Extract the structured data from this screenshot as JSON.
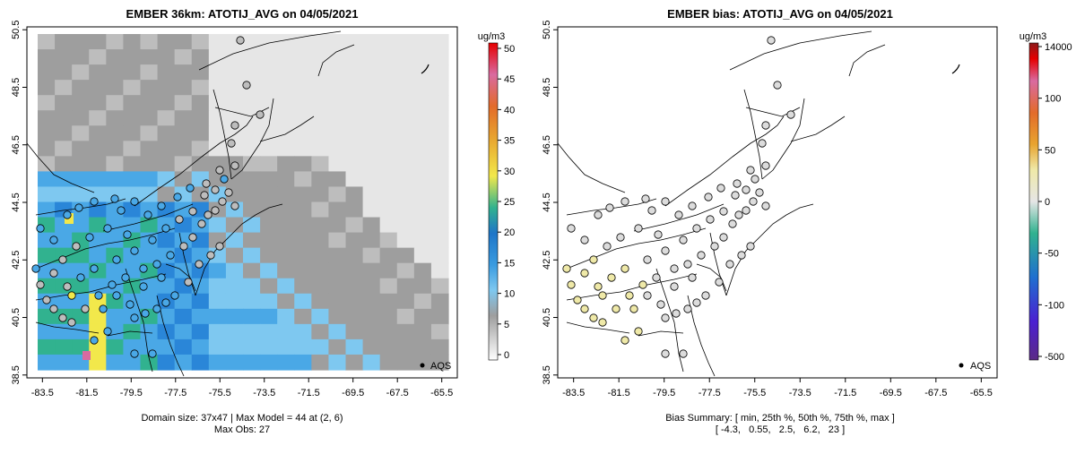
{
  "chart_data": [
    {
      "type": "heatmap",
      "title": "EMBER 36km: ATOTIJ_AVG on 04/05/2021",
      "x_ticks": [
        "-83.5",
        "-81.5",
        "-79.5",
        "-77.5",
        "-75.5",
        "-73.5",
        "-71.5",
        "-69.5",
        "-67.5",
        "-65.5"
      ],
      "y_ticks": [
        "38.5",
        "40.5",
        "42.5",
        "44.5",
        "46.5",
        "48.5",
        "50.5"
      ],
      "xlim": [
        -84.2,
        -64.8
      ],
      "ylim": [
        38.4,
        50.6
      ],
      "colorbar": {
        "unit": "ug/m3",
        "ticks": [
          "0",
          "5",
          "10",
          "15",
          "20",
          "25",
          "30",
          "35",
          "40",
          "45",
          "50"
        ],
        "range": [
          0,
          52
        ]
      },
      "legend": {
        "label": "AQS",
        "position": "bottom-right"
      },
      "footer": [
        "Domain size: 37x47 | Max Model = 44 at (2, 6)",
        "Max Obs: 27"
      ]
    },
    {
      "type": "heatmap",
      "title": "EMBER bias: ATOTIJ_AVG on 04/05/2021",
      "x_ticks": [
        "-83.5",
        "-81.5",
        "-79.5",
        "-77.5",
        "-75.5",
        "-73.5",
        "-71.5",
        "-69.5",
        "-67.5",
        "-65.5"
      ],
      "y_ticks": [
        "38.5",
        "40.5",
        "42.5",
        "44.5",
        "46.5",
        "48.5",
        "50.5"
      ],
      "xlim": [
        -84.2,
        -64.8
      ],
      "ylim": [
        38.4,
        50.6
      ],
      "colorbar": {
        "unit": "ug/m3",
        "ticks": [
          "14000",
          "100",
          "50",
          "0",
          "-50",
          "-100",
          "-500"
        ],
        "range": [
          -500,
          14000
        ]
      },
      "legend": {
        "label": "AQS",
        "position": "bottom-right"
      },
      "footer": [
        "Bias Summary: [ min, 25th %, 50th %, 75th %, max ]",
        "[ -4.3,   0.55,   2.5,   6.2,   23 ]"
      ]
    }
  ],
  "colors": {
    "bg": "#ffffff",
    "gray_light": "#e6e6e6",
    "gray_mid": "#bdbdbd",
    "gray_dark": "#9e9e9e",
    "blue_light": "#7ec8f0",
    "blue_mid": "#4aa8e6",
    "blue_dark": "#2a86d8",
    "green": "#31b28f",
    "yellow": "#f2e84b",
    "pink": "#d96aa0",
    "bias_yellow": "#efe9a8",
    "bias_gray": "#dcdcdc"
  }
}
